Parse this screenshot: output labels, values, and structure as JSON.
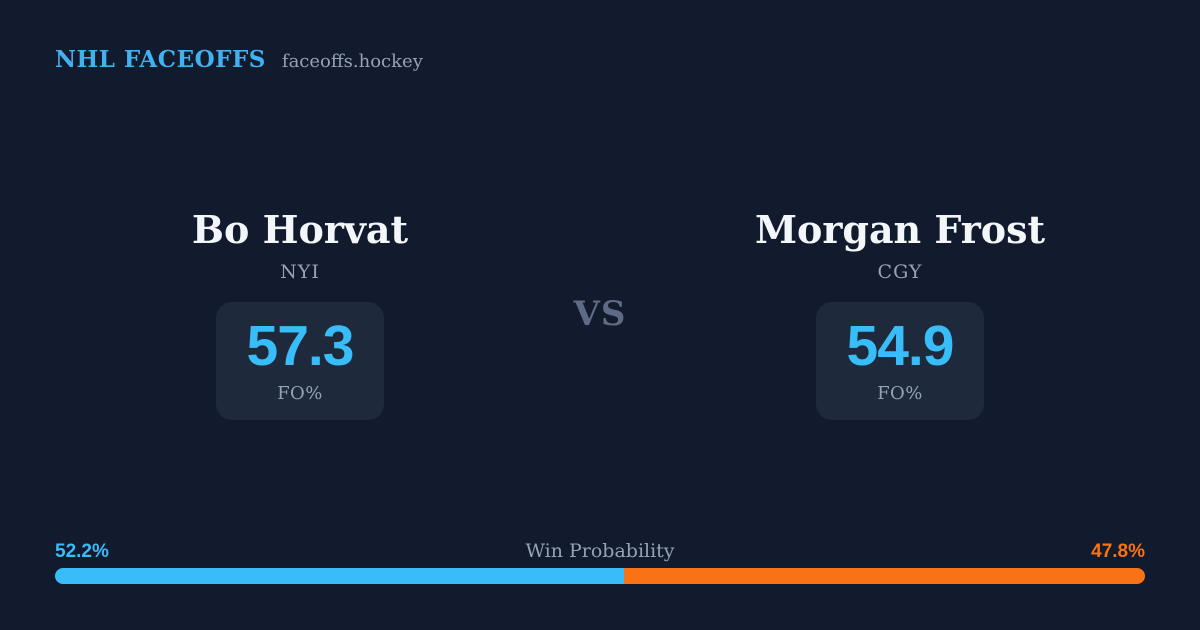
{
  "theme": {
    "bg": "#121a2d",
    "card_bg": "#1e293b",
    "blue": "#38bdf8",
    "header_blue": "#41b2f0",
    "orange": "#f97316",
    "gray": "#94a3b8",
    "muted": "#5d6c84",
    "white": "#f4f7fa"
  },
  "header": {
    "brand": "NHL FACEOFFS",
    "site": "faceoffs.hockey"
  },
  "matchup": {
    "vs_label": "VS",
    "players": [
      {
        "name": "Bo Horvat",
        "team": "NYI",
        "stat_value": "57.3",
        "stat_label": "FO%"
      },
      {
        "name": "Morgan Frost",
        "team": "CGY",
        "stat_value": "54.9",
        "stat_label": "FO%"
      }
    ]
  },
  "win_probability": {
    "label": "Win Probability",
    "left_pct_text": "52.2%",
    "right_pct_text": "47.8%",
    "left_value": 52.2,
    "right_value": 47.8
  },
  "chart_data": {
    "type": "bar",
    "title": "Win Probability",
    "categories": [
      "Bo Horvat (NYI)",
      "Morgan Frost (CGY)"
    ],
    "values": [
      52.2,
      47.8
    ],
    "xlabel": "",
    "ylabel": "Win Probability (%)",
    "ylim": [
      0,
      100
    ],
    "colors": [
      "#38bdf8",
      "#f97316"
    ],
    "legend": false,
    "grid": false
  }
}
